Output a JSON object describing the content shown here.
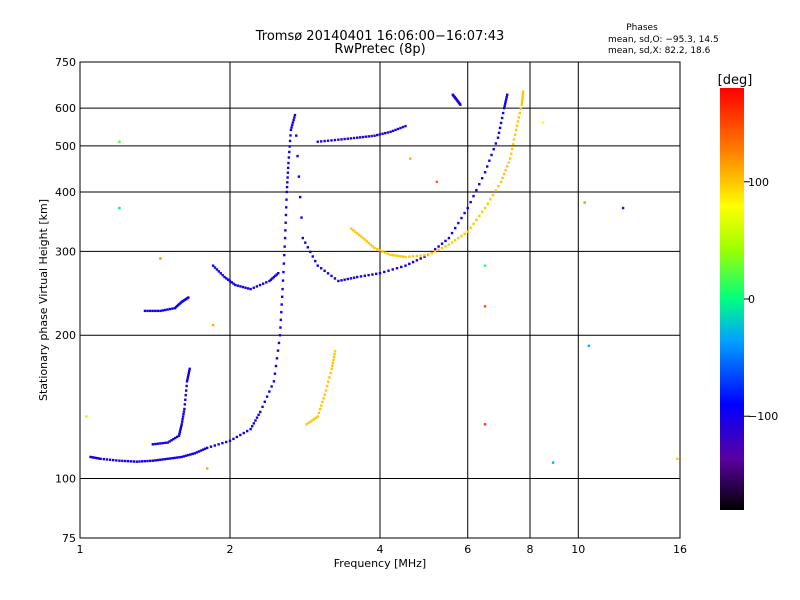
{
  "chart_data": {
    "type": "scatter",
    "title": "Tromsø 20140401 16:06:00−16:07:43",
    "subtitle": "RwPretec (8p)",
    "xlabel": "Frequency [MHz]",
    "ylabel": "Stationary phase Virtual Height [km]",
    "x_scale": "log",
    "y_scale": "log",
    "xlim": [
      1,
      16
    ],
    "ylim": [
      75,
      750
    ],
    "x_ticks": [
      1,
      2,
      4,
      6,
      8,
      10,
      16
    ],
    "x_tick_labels": [
      "1",
      "2",
      "4",
      "6",
      "8",
      "10",
      "16"
    ],
    "y_ticks": [
      75,
      100,
      200,
      300,
      400,
      500,
      600,
      750
    ],
    "y_tick_labels": [
      "75",
      "100",
      "200",
      "300",
      "400",
      "500",
      "600",
      "750"
    ],
    "grid": true,
    "stats": {
      "header": "Phases",
      "line_o": "mean, sd,O: −95.3, 14.5",
      "line_x": "mean, sd,X:  82.2, 18.6"
    },
    "colorbar": {
      "label": "[deg]",
      "range": [
        -180,
        180
      ],
      "ticks": [
        100,
        0,
        -100
      ],
      "tick_labels": [
        "100",
        "0",
        "−100"
      ],
      "colormap": "rainbow"
    },
    "series": [
      {
        "points": [
          [
            1.05,
            111
          ],
          [
            1.1,
            110
          ],
          [
            1.2,
            109
          ],
          [
            1.3,
            108.5
          ],
          [
            1.4,
            109
          ],
          [
            1.5,
            110
          ],
          [
            1.6,
            111
          ],
          [
            1.7,
            113
          ],
          [
            1.8,
            116
          ],
          [
            2.0,
            120
          ],
          [
            2.2,
            127
          ],
          [
            2.3,
            138
          ],
          [
            2.45,
            160
          ],
          [
            2.52,
            200
          ],
          [
            2.55,
            250
          ],
          [
            2.58,
            320
          ],
          [
            2.6,
            400
          ],
          [
            2.62,
            460
          ],
          [
            2.65,
            540
          ],
          [
            2.7,
            580
          ],
          [
            2.8,
            320
          ],
          [
            3.0,
            280
          ],
          [
            3.3,
            260
          ],
          [
            3.6,
            265
          ],
          [
            4.0,
            270
          ],
          [
            4.5,
            280
          ],
          [
            5.0,
            295
          ],
          [
            5.5,
            320
          ],
          [
            6.0,
            370
          ],
          [
            6.5,
            440
          ],
          [
            6.9,
            520
          ],
          [
            7.1,
            600
          ],
          [
            7.2,
            640
          ]
        ],
        "phase": -100
      },
      {
        "points": [
          [
            1.35,
            225
          ],
          [
            1.45,
            225
          ],
          [
            1.55,
            228
          ],
          [
            1.6,
            235
          ],
          [
            1.65,
            240
          ]
        ],
        "phase": -100
      },
      {
        "points": [
          [
            1.4,
            118
          ],
          [
            1.5,
            119
          ],
          [
            1.58,
            123
          ],
          [
            1.6,
            130
          ],
          [
            1.62,
            140
          ],
          [
            1.64,
            160
          ],
          [
            1.66,
            170
          ]
        ],
        "phase": -100
      },
      {
        "points": [
          [
            1.85,
            280
          ],
          [
            1.95,
            265
          ],
          [
            2.05,
            255
          ],
          [
            2.2,
            250
          ],
          [
            2.4,
            260
          ],
          [
            2.5,
            270
          ]
        ],
        "phase": -100
      },
      {
        "points": [
          [
            3.0,
            510
          ],
          [
            3.3,
            515
          ],
          [
            3.6,
            520
          ],
          [
            3.9,
            525
          ],
          [
            4.2,
            535
          ],
          [
            4.5,
            550
          ]
        ],
        "phase": -110
      },
      {
        "points": [
          [
            3.5,
            335
          ],
          [
            3.7,
            320
          ],
          [
            3.9,
            305
          ],
          [
            4.2,
            295
          ],
          [
            4.5,
            292
          ],
          [
            5.0,
            295
          ],
          [
            5.5,
            310
          ],
          [
            6.0,
            330
          ],
          [
            6.5,
            370
          ],
          [
            7.0,
            420
          ],
          [
            7.3,
            470
          ],
          [
            7.5,
            540
          ],
          [
            7.7,
            610
          ],
          [
            7.75,
            650
          ]
        ],
        "phase": 100
      },
      {
        "points": [
          [
            2.85,
            130
          ],
          [
            3.0,
            135
          ],
          [
            3.1,
            150
          ],
          [
            3.2,
            170
          ],
          [
            3.25,
            185
          ]
        ],
        "phase": 100
      },
      {
        "points": [
          [
            5.6,
            640
          ],
          [
            5.7,
            625
          ],
          [
            5.8,
            610
          ]
        ],
        "phase": -110
      }
    ],
    "scattered_points": [
      {
        "x": 1.2,
        "y": 510,
        "phase": 20
      },
      {
        "x": 1.2,
        "y": 370,
        "phase": -10
      },
      {
        "x": 1.03,
        "y": 135,
        "phase": 60
      },
      {
        "x": 1.45,
        "y": 290,
        "phase": 120
      },
      {
        "x": 5.2,
        "y": 420,
        "phase": 140
      },
      {
        "x": 6.5,
        "y": 280,
        "phase": 10
      },
      {
        "x": 6.5,
        "y": 230,
        "phase": 150
      },
      {
        "x": 6.5,
        "y": 130,
        "phase": 160
      },
      {
        "x": 8.9,
        "y": 108,
        "phase": -30
      },
      {
        "x": 10.5,
        "y": 190,
        "phase": -30
      },
      {
        "x": 12.3,
        "y": 370,
        "phase": -120
      },
      {
        "x": 15.8,
        "y": 110,
        "phase": 100
      },
      {
        "x": 10.3,
        "y": 380,
        "phase": 120
      },
      {
        "x": 8.5,
        "y": 560,
        "phase": 80
      },
      {
        "x": 4.6,
        "y": 470,
        "phase": 110
      },
      {
        "x": 1.8,
        "y": 105,
        "phase": 110
      },
      {
        "x": 1.85,
        "y": 210,
        "phase": 110
      }
    ]
  }
}
